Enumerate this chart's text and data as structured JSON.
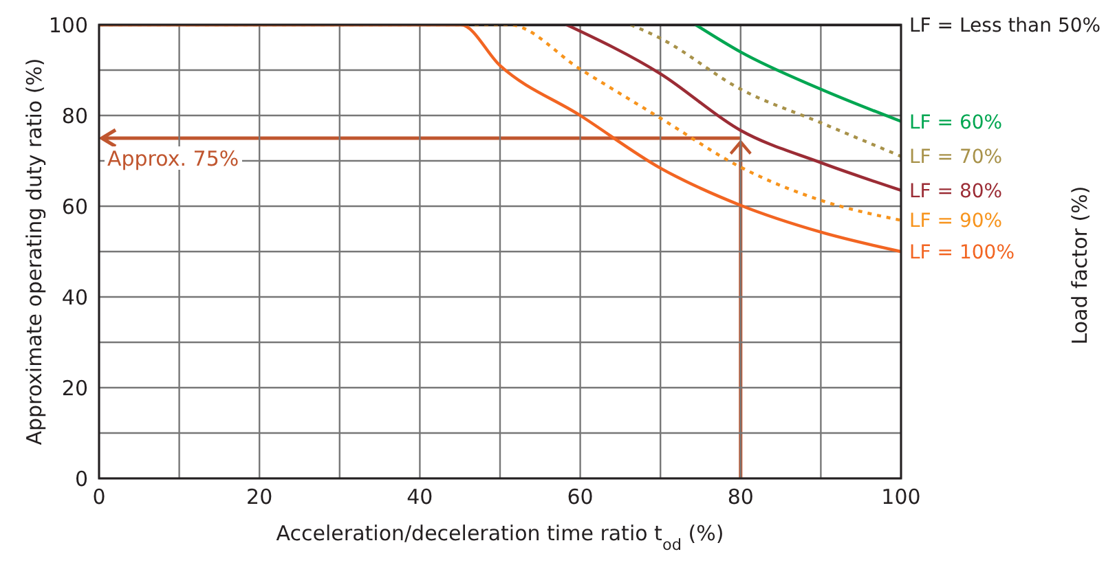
{
  "chart_data": {
    "type": "line",
    "xlabel": "Acceleration/deceleration time ratio t$_{od}$ (%)",
    "ylabel": "Approximate operating duty ratio (%)",
    "xlim": [
      0,
      100
    ],
    "ylim": [
      0,
      100
    ],
    "xticks": [
      0,
      {
        "value": 10,
        "label": null
      },
      20,
      {
        "value": 30,
        "label": null
      },
      40,
      {
        "value": 50,
        "label": null
      },
      60,
      {
        "value": 70,
        "label": null
      },
      80,
      {
        "value": 90,
        "label": null
      },
      100
    ],
    "yticks": [
      0,
      {
        "value": 10,
        "label": null
      },
      20,
      {
        "value": 30,
        "label": null
      },
      40,
      {
        "value": 50,
        "label": null
      },
      60,
      {
        "value": 70,
        "label": null
      },
      80,
      {
        "value": 90,
        "label": null
      },
      100
    ],
    "grid": true,
    "marker": "none",
    "annotations": [
      {
        "text": "Approx. 75%",
        "x": 80,
        "y": 75
      },
      "Load factor (%)"
    ],
    "series": [
      {
        "name": "LF = Less than 50%",
        "color": "#231f20",
        "line_style": "solid",
        "x": [
          0,
          100
        ],
        "values": [
          100,
          100
        ]
      },
      {
        "name": "LF = 60%",
        "color": "#00a651",
        "line_style": "solid",
        "x": [
          74.4,
          80,
          90,
          100
        ],
        "values": [
          100,
          94,
          85.8,
          78.7
        ]
      },
      {
        "name": "LF = 70%",
        "color": "#a8924a",
        "line_style": "dotted",
        "x": [
          66.3,
          70,
          80,
          90,
          100
        ],
        "values": [
          100,
          97,
          85.8,
          78.4,
          71
        ]
      },
      {
        "name": "LF = 80%",
        "color": "#9b2c35",
        "line_style": "solid",
        "x": [
          58.3,
          70,
          80,
          90,
          100
        ],
        "values": [
          100,
          89.2,
          76.7,
          69.6,
          63.5
        ]
      },
      {
        "name": "LF = 90%",
        "color": "#f7941d",
        "line_style": "dotted",
        "x": [
          0,
          51.1,
          60,
          70,
          80,
          90,
          100
        ],
        "values": [
          100,
          100,
          90.2,
          79.4,
          68.6,
          61.3,
          56.9
        ]
      },
      {
        "name": "LF = 100%",
        "color": "#f26522",
        "line_style": "solid",
        "x": [
          0,
          45.1,
          50,
          60,
          70,
          80,
          90,
          100
        ],
        "values": [
          100,
          100,
          91,
          80,
          68.4,
          60.2,
          54.3,
          50
        ]
      }
    ]
  }
}
